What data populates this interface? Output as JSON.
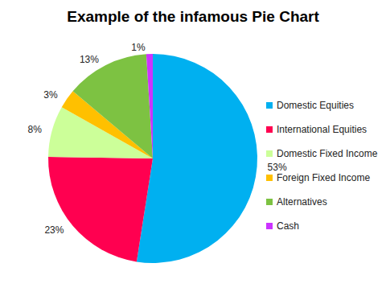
{
  "chart_data": {
    "type": "pie",
    "title": "Example of the infamous Pie Chart",
    "categories": [
      "Domestic Equities",
      "International Equities",
      "Domestic Fixed Income",
      "Foreign Fixed Income",
      "Alternatives",
      "Cash"
    ],
    "values": [
      53,
      23,
      8,
      3,
      13,
      1
    ],
    "value_labels": [
      "53%",
      "23%",
      "8%",
      "3%",
      "13%",
      "1%"
    ],
    "colors": [
      "#00b0f0",
      "#ff0050",
      "#ccff99",
      "#ffc000",
      "#7dc242",
      "#cc33ff"
    ],
    "data_labels": true,
    "legend": "right"
  }
}
